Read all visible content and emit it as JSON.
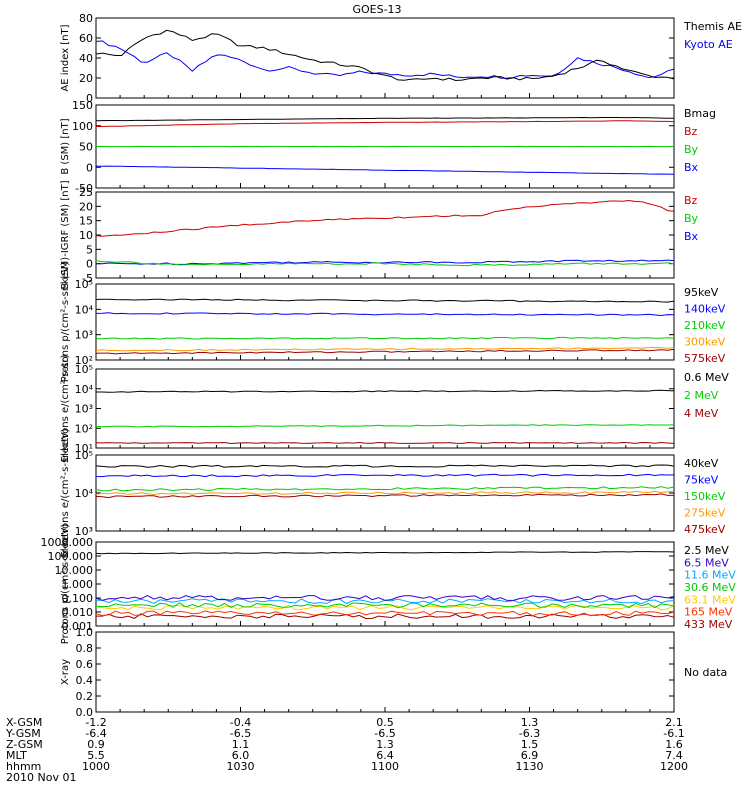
{
  "title": "GOES-13",
  "x_ticks": [
    "1000",
    "1030",
    "1100",
    "1130",
    "1200"
  ],
  "footer": {
    "row_labels": [
      "X-GSM",
      "Y-GSM",
      "Z-GSM",
      "MLT",
      "hhmm",
      "2010 Nov 01"
    ],
    "columns": [
      [
        "-1.2",
        "-6.4",
        "0.9",
        "5.5",
        "1000"
      ],
      [
        "-0.4",
        "-6.5",
        "1.1",
        "6.0",
        "1030"
      ],
      [
        "0.5",
        "-6.5",
        "1.3",
        "6.4",
        "1100"
      ],
      [
        "1.3",
        "-6.3",
        "1.5",
        "6.9",
        "1130"
      ],
      [
        "2.1",
        "-6.1",
        "1.6",
        "7.4",
        "1200"
      ]
    ]
  },
  "chart_data": [
    {
      "type": "line",
      "ylabel": "AE index [nT]",
      "yticks": [
        "80",
        "60",
        "40",
        "20",
        "0"
      ],
      "ylim": [
        0,
        80
      ],
      "series": [
        {
          "name": "Kyoto AE",
          "color": "#0000ff",
          "x": [
            0,
            5,
            10,
            15,
            20,
            25,
            30,
            35,
            40,
            45,
            50,
            55,
            60,
            65,
            70,
            75,
            80,
            85,
            90,
            95,
            100,
            105,
            110,
            115,
            120
          ],
          "values": [
            58,
            50,
            35,
            45,
            27,
            44,
            38,
            28,
            30,
            25,
            22,
            26,
            24,
            23,
            24,
            21,
            22,
            21,
            23,
            22,
            40,
            34,
            28,
            20,
            28
          ]
        },
        {
          "name": "Themis AE",
          "color": "#000000",
          "x": [
            0,
            5,
            10,
            15,
            20,
            25,
            30,
            35,
            40,
            45,
            50,
            55,
            60,
            65,
            70,
            75,
            80,
            85,
            90,
            95,
            100,
            105,
            110,
            115,
            120
          ],
          "values": [
            45,
            42,
            60,
            68,
            58,
            64,
            52,
            50,
            44,
            38,
            34,
            30,
            22,
            17,
            20,
            18,
            20,
            20,
            19,
            22,
            30,
            38,
            28,
            22,
            20
          ]
        }
      ],
      "grid": false
    },
    {
      "type": "line",
      "ylabel": "B (SM) [nT]",
      "yticks": [
        "150",
        "100",
        "50",
        "0",
        "-50"
      ],
      "ylim": [
        -50,
        150
      ],
      "series": [
        {
          "name": "Bx",
          "color": "#0000ff",
          "x": [
            0,
            120
          ],
          "values": [
            3,
            -17
          ]
        },
        {
          "name": "By",
          "color": "#00cc00",
          "x": [
            0,
            120
          ],
          "values": [
            50,
            50
          ]
        },
        {
          "name": "Bz",
          "color": "#cc0000",
          "x": [
            0,
            30,
            60,
            90,
            110,
            120
          ],
          "values": [
            98,
            105,
            108,
            110,
            112,
            110
          ]
        },
        {
          "name": "Bmag",
          "color": "#000000",
          "x": [
            0,
            30,
            60,
            90,
            110,
            120
          ],
          "values": [
            112,
            115,
            118,
            119,
            120,
            118
          ]
        }
      ],
      "grid": false
    },
    {
      "type": "line",
      "ylabel": "B (SM)-IGRF (SM) [nT]",
      "yticks": [
        "25",
        "20",
        "15",
        "10",
        "5",
        "0",
        "-5"
      ],
      "ylim": [
        -5,
        25
      ],
      "series": [
        {
          "name": "Bx",
          "color": "#0000ff",
          "x": [
            0,
            20,
            40,
            60,
            80,
            100,
            120
          ],
          "values": [
            0,
            0,
            0.5,
            0.5,
            0.5,
            1,
            1
          ]
        },
        {
          "name": "By",
          "color": "#00cc00",
          "x": [
            0,
            20,
            40,
            60,
            80,
            100,
            120
          ],
          "values": [
            1,
            -0.5,
            0,
            0,
            -0.5,
            0,
            0
          ]
        },
        {
          "name": "Bz",
          "color": "#cc0000",
          "x": [
            0,
            10,
            20,
            30,
            40,
            50,
            60,
            70,
            80,
            90,
            100,
            110,
            115,
            120
          ],
          "values": [
            9.5,
            10.5,
            12,
            13.5,
            14.5,
            15.5,
            16,
            16.5,
            17,
            20,
            21,
            22,
            21,
            18
          ]
        }
      ],
      "grid": false
    },
    {
      "type": "line",
      "ylabel": "Protons p/(cm²-s-sr-keV)",
      "yticks": [
        "10⁵",
        "10⁴",
        "10³",
        "10²"
      ],
      "ylog": true,
      "ylim": [
        100,
        100000
      ],
      "series": [
        {
          "name": "575keV",
          "color": "#990000",
          "x": [
            0,
            120
          ],
          "values": [
            180,
            250
          ]
        },
        {
          "name": "300keV",
          "color": "#ff9900",
          "x": [
            0,
            120
          ],
          "values": [
            240,
            300
          ]
        },
        {
          "name": "210keV",
          "color": "#00cc00",
          "x": [
            0,
            120
          ],
          "values": [
            700,
            750
          ]
        },
        {
          "name": "140keV",
          "color": "#0000ff",
          "x": [
            0,
            120
          ],
          "values": [
            7000,
            6000
          ]
        },
        {
          "name": "95keV",
          "color": "#000000",
          "x": [
            0,
            120
          ],
          "values": [
            25000,
            20000
          ]
        }
      ],
      "grid": false
    },
    {
      "type": "line",
      "ylabel": "Electrons e/(cm²-s-sr)",
      "yticks": [
        "10⁵",
        "10⁴",
        "10³",
        "10²",
        "10¹"
      ],
      "ylog": true,
      "ylim": [
        10,
        100000
      ],
      "series": [
        {
          "name": "4 MeV",
          "color": "#990000",
          "x": [
            0,
            120
          ],
          "values": [
            18,
            18
          ]
        },
        {
          "name": "2 MeV",
          "color": "#00cc00",
          "x": [
            0,
            120
          ],
          "values": [
            120,
            150
          ]
        },
        {
          "name": "0.6 MeV",
          "color": "#000000",
          "x": [
            0,
            120
          ],
          "values": [
            7000,
            8000
          ]
        }
      ],
      "grid": false
    },
    {
      "type": "line",
      "ylabel": "Electrons e/(cm²-s-sr-keV)",
      "yticks": [
        "10⁵",
        "10⁴",
        "10³"
      ],
      "ylog": true,
      "ylim": [
        1000,
        100000
      ],
      "series": [
        {
          "name": "475keV",
          "color": "#990000",
          "x": [
            0,
            120
          ],
          "values": [
            8000,
            9000
          ]
        },
        {
          "name": "275keV",
          "color": "#ff9900",
          "x": [
            0,
            120
          ],
          "values": [
            9500,
            10500
          ]
        },
        {
          "name": "150keV",
          "color": "#00cc00",
          "x": [
            0,
            120
          ],
          "values": [
            12000,
            14000
          ]
        },
        {
          "name": "75keV",
          "color": "#0000ff",
          "x": [
            0,
            120
          ],
          "values": [
            28000,
            30000
          ]
        },
        {
          "name": "40keV",
          "color": "#000000",
          "x": [
            0,
            120
          ],
          "values": [
            50000,
            52000
          ]
        }
      ],
      "grid": false
    },
    {
      "type": "line",
      "ylabel": "Protons p/(cm²-s-sr-keV)",
      "yticks": [
        "1000.000",
        "100.000",
        "10.000",
        "1.000",
        "0.100",
        "0.010",
        "0.001"
      ],
      "ylog": true,
      "ylim": [
        0.001,
        1000
      ],
      "series": [
        {
          "name": "433 MeV",
          "color": "#990000",
          "x": [
            0,
            120
          ],
          "values": [
            0.005,
            0.005
          ]
        },
        {
          "name": "165 MeV",
          "color": "#ff3300",
          "x": [
            0,
            120
          ],
          "values": [
            0.008,
            0.008
          ]
        },
        {
          "name": "63.1 MeV",
          "color": "#ffcc00",
          "x": [
            0,
            120
          ],
          "values": [
            0.02,
            0.02
          ]
        },
        {
          "name": "30.6 MeV",
          "color": "#00cc00",
          "x": [
            0,
            120
          ],
          "values": [
            0.03,
            0.03
          ]
        },
        {
          "name": "11.6 MeV",
          "color": "#00aaff",
          "x": [
            0,
            120
          ],
          "values": [
            0.06,
            0.06
          ]
        },
        {
          "name": "6.5 MeV",
          "color": "#3300cc",
          "x": [
            0,
            120
          ],
          "values": [
            0.1,
            0.1
          ]
        },
        {
          "name": "2.5 MeV",
          "color": "#000000",
          "x": [
            0,
            120
          ],
          "values": [
            150,
            200
          ]
        }
      ],
      "grid": false
    },
    {
      "type": "line",
      "ylabel": "X-ray",
      "yticks": [
        "1.0",
        "0.8",
        "0.6",
        "0.4",
        "0.2",
        "0.0"
      ],
      "ylim": [
        0,
        1
      ],
      "series": [],
      "note": "No data",
      "grid": false
    }
  ]
}
